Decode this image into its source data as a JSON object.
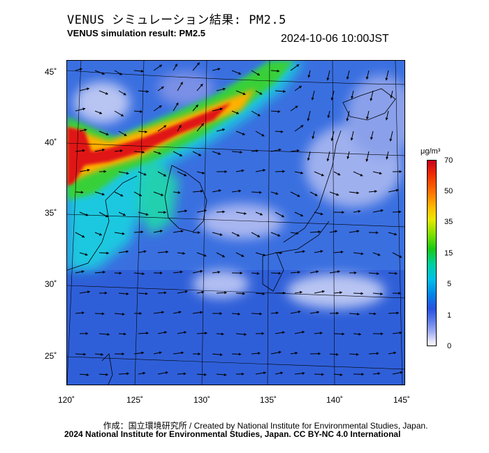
{
  "header": {
    "title_jp": "VENUS シミュレーション結果: PM2.5",
    "title_en": "VENUS simulation result: PM2.5",
    "timestamp": "2024-10-06 10:00JST"
  },
  "axes": {
    "lat_labels": [
      "45˚",
      "40˚",
      "35˚",
      "30˚",
      "25˚"
    ],
    "lon_labels": [
      "120˚",
      "125˚",
      "130˚",
      "135˚",
      "140˚",
      "145˚"
    ]
  },
  "colorbar": {
    "unit": "μg/m³",
    "ticks": [
      "70",
      "50",
      "35",
      "15",
      "5",
      "1",
      "0"
    ],
    "colors": [
      "#c8001c",
      "#ff7a00",
      "#e8e800",
      "#18c818",
      "#00c0e8",
      "#2850e0",
      "#ffffff"
    ]
  },
  "footer": {
    "credit_line1": "作成：国立環境研究所 / Created by National Institute for Environmental Studies, Japan.",
    "credit_line2": "2024 National Institute for Environmental Studies, Japan. CC BY-NC 4.0 International"
  }
}
